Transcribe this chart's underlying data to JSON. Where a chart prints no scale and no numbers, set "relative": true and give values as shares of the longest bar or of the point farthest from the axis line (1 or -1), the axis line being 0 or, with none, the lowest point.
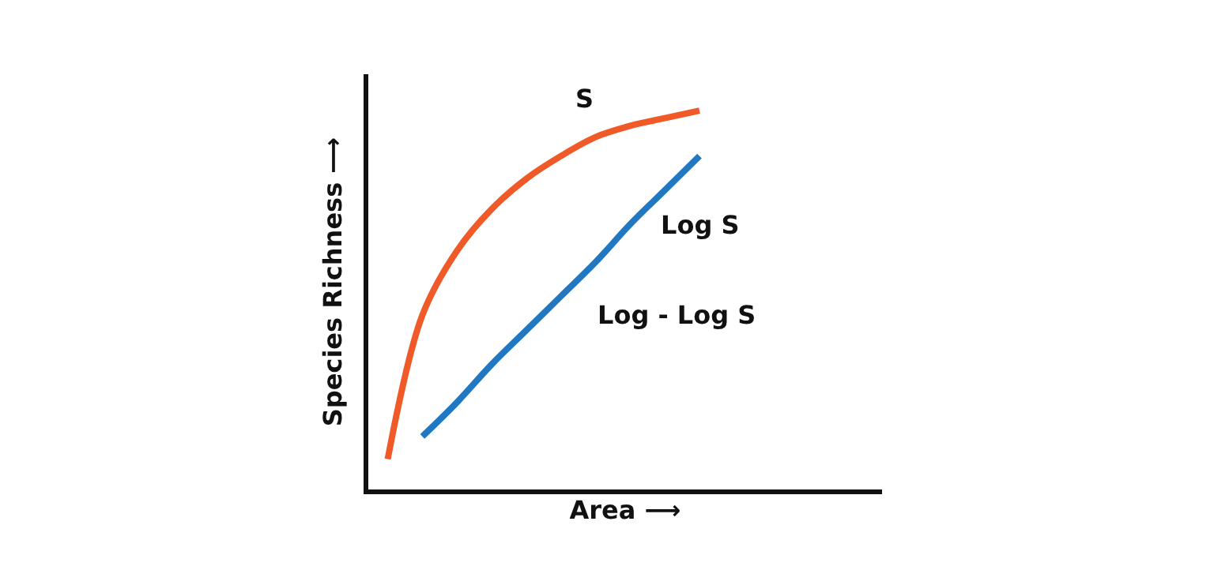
{
  "chart_data": {
    "type": "line",
    "relative": true,
    "xlabel": "Area ⟶",
    "ylabel": "Species Richness ⟶",
    "categories": [
      null,
      null,
      null,
      null,
      null,
      null,
      null,
      null,
      null,
      null
    ],
    "series": [
      {
        "color": "#f05a28",
        "values": [
          0.08,
          0.46,
          0.63,
          0.74,
          0.82,
          0.88,
          0.93,
          0.96,
          0.98,
          1.0
        ]
      },
      {
        "color": "#1f78c1",
        "values": [
          null,
          0.14,
          0.23,
          0.33,
          0.42,
          0.51,
          0.6,
          0.7,
          0.79,
          0.88
        ]
      }
    ],
    "annotations": [
      "S",
      "Log S",
      "Log - Log S"
    ],
    "marker": "none",
    "line_style": "solid"
  }
}
